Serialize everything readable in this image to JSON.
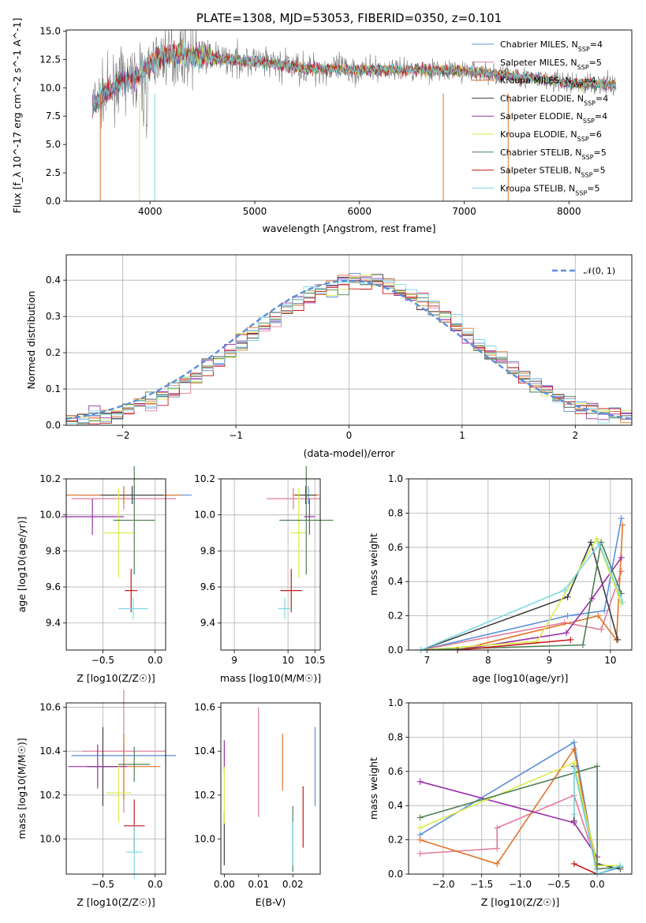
{
  "colors": {
    "Chabrier MILES": "#5b8fd9",
    "Salpeter MILES": "#e07b9b",
    "Kroupa MILES": "#e0742b",
    "Chabrier ELODIE": "#3f3f3f",
    "Salpeter ELODIE": "#9a2fa8",
    "Kroupa ELODIE": "#d9ec4a",
    "Chabrier STELIB": "#4f7f55",
    "Salpeter STELIB": "#c41a1a",
    "Kroupa STELIB": "#7ed9e3"
  },
  "chart_data": [
    {
      "type": "line",
      "title": "PLATE=1308, MJD=53053, FIBERID=0350, z=0.101",
      "xlabel": "wavelength [Angstrom, rest frame]",
      "ylabel": "Flux [f_λ 10^-17 erg cm^-2 s^-1 A^-1]",
      "xlim": [
        3200,
        8600
      ],
      "ylim": [
        0,
        15.1
      ],
      "xticks": [
        "4000",
        "5000",
        "6000",
        "7000",
        "8000"
      ],
      "yticks": [
        "0.0",
        "2.5",
        "5.0",
        "7.5",
        "10.0",
        "12.5",
        "15.0"
      ],
      "legend_position": "top-right",
      "legend": [
        {
          "name": "Chabrier MILES",
          "nssp": "4"
        },
        {
          "name": "Salpeter MILES",
          "nssp": "5"
        },
        {
          "name": "Kroupa MILES",
          "nssp": "4"
        },
        {
          "name": "Chabrier ELODIE",
          "nssp": "4"
        },
        {
          "name": "Salpeter ELODIE",
          "nssp": "4"
        },
        {
          "name": "Kroupa ELODIE",
          "nssp": "6"
        },
        {
          "name": "Chabrier STELIB",
          "nssp": "5"
        },
        {
          "name": "Salpeter STELIB",
          "nssp": "5"
        },
        {
          "name": "Kroupa STELIB",
          "nssp": "5"
        }
      ],
      "spectrum_profile": {
        "x": [
          3450,
          3700,
          3900,
          4100,
          4300,
          4600,
          5000,
          5500,
          6000,
          6500,
          7000,
          7500,
          8000,
          8450
        ],
        "y": [
          8.5,
          10.5,
          11.0,
          12.8,
          13.0,
          12.6,
          12.3,
          11.7,
          11.6,
          11.6,
          11.5,
          11.0,
          10.4,
          10.3
        ]
      },
      "grid": false
    },
    {
      "type": "histogram",
      "xlabel": "(data-model)/error",
      "ylabel": "Normed distribution",
      "xlim": [
        -2.5,
        2.5
      ],
      "ylim": [
        0,
        0.47
      ],
      "xticks": [
        "−2",
        "−1",
        "0",
        "1",
        "2"
      ],
      "yticks": [
        "0.0",
        "0.1",
        "0.2",
        "0.3",
        "0.4"
      ],
      "reference_curve": "N(0,1)",
      "legend_label": "𝒩(0, 1)",
      "legend_position": "top-right",
      "bin_width": 0.1,
      "grid": true
    },
    {
      "type": "scatter",
      "xlabel": "Z [log10(Z/Z☉)]",
      "ylabel": "age [log10(age/yr)]",
      "xlim": [
        -0.85,
        0.1
      ],
      "ylim": [
        9.25,
        10.2
      ],
      "xticks": [
        "−0.5",
        "0.0"
      ],
      "yticks": [
        "9.4",
        "9.6",
        "9.8",
        "10.0",
        "10.2"
      ],
      "points": [
        {
          "model": "Chabrier MILES",
          "x": -0.2,
          "xerr": 0.55,
          "y": 10.11,
          "yerr": 0.05
        },
        {
          "model": "Salpeter MILES",
          "x": -0.3,
          "xerr": 0.5,
          "y": 10.09,
          "yerr": 0.06
        },
        {
          "model": "Kroupa MILES",
          "x": -0.3,
          "xerr": 0.55,
          "y": 10.11,
          "yerr": 0.05
        },
        {
          "model": "Chabrier ELODIE",
          "x": -0.22,
          "xerr": 0.3,
          "y": 10.11,
          "yerr": 0.05
        },
        {
          "model": "Salpeter ELODIE",
          "x": -0.6,
          "xerr": 0.3,
          "y": 9.99,
          "yerr": 0.1
        },
        {
          "model": "Kroupa ELODIE",
          "x": -0.35,
          "xerr": 0.15,
          "y": 9.9,
          "yerr": 0.25
        },
        {
          "model": "Chabrier STELIB",
          "x": -0.2,
          "xerr": 0.2,
          "y": 9.97,
          "yerr": 0.3
        },
        {
          "model": "Salpeter STELIB",
          "x": -0.23,
          "xerr": 0.06,
          "y": 9.58,
          "yerr": 0.12
        },
        {
          "model": "Kroupa STELIB",
          "x": -0.21,
          "xerr": 0.14,
          "y": 9.48,
          "yerr": 0.06
        }
      ],
      "grid": true
    },
    {
      "type": "scatter",
      "xlabel": "mass [log10(M/M☉)]",
      "ylabel": "",
      "xlim": [
        8.75,
        10.6
      ],
      "ylim": [
        9.25,
        10.2
      ],
      "xticks": [
        "9",
        "10",
        "10.5"
      ],
      "yticks": [
        "9.4",
        "9.6",
        "9.8",
        "10.0",
        "10.2"
      ],
      "points": [
        {
          "model": "Chabrier MILES",
          "x": 10.38,
          "xerr": 0.12,
          "y": 10.11,
          "yerr": 0.05
        },
        {
          "model": "Salpeter MILES",
          "x": 10.1,
          "xerr": 0.5,
          "y": 10.09,
          "yerr": 0.06
        },
        {
          "model": "Kroupa MILES",
          "x": 10.33,
          "xerr": 0.25,
          "y": 10.11,
          "yerr": 0.05
        },
        {
          "model": "Chabrier ELODIE",
          "x": 10.33,
          "xerr": 0.2,
          "y": 10.11,
          "yerr": 0.05
        },
        {
          "model": "Salpeter ELODIE",
          "x": 10.4,
          "xerr": 0.1,
          "y": 9.99,
          "yerr": 0.1
        },
        {
          "model": "Kroupa ELODIE",
          "x": 10.2,
          "xerr": 0.15,
          "y": 9.9,
          "yerr": 0.25
        },
        {
          "model": "Chabrier STELIB",
          "x": 10.34,
          "xerr": 0.5,
          "y": 9.97,
          "yerr": 0.3
        },
        {
          "model": "Salpeter STELIB",
          "x": 10.06,
          "xerr": 0.2,
          "y": 9.58,
          "yerr": 0.12
        },
        {
          "model": "Kroupa STELIB",
          "x": 9.94,
          "xerr": 0.12,
          "y": 9.48,
          "yerr": 0.06
        }
      ],
      "grid": true
    },
    {
      "type": "line",
      "xlabel": "age [log10(age/yr)]",
      "ylabel": "mass weight",
      "xlim": [
        6.7,
        10.35
      ],
      "ylim": [
        0,
        1.0
      ],
      "xticks": [
        "7",
        "8",
        "9",
        "10"
      ],
      "yticks": [
        "0.0",
        "0.2",
        "0.4",
        "0.6",
        "0.8",
        "1.0"
      ],
      "series": [
        {
          "model": "Chabrier MILES",
          "x": [
            6.9,
            9.3,
            9.9,
            10.18
          ],
          "y": [
            0.0,
            0.2,
            0.23,
            0.77
          ]
        },
        {
          "model": "Salpeter MILES",
          "x": [
            6.9,
            9.25,
            9.85,
            10.18
          ],
          "y": [
            0.0,
            0.16,
            0.12,
            0.46
          ]
        },
        {
          "model": "Kroupa MILES",
          "x": [
            7.5,
            9.8,
            10.1,
            10.2
          ],
          "y": [
            0.0,
            0.2,
            0.06,
            0.73
          ]
        },
        {
          "model": "Chabrier ELODIE",
          "x": [
            6.9,
            9.3,
            9.68,
            10.12
          ],
          "y": [
            0.0,
            0.31,
            0.63,
            0.06
          ]
        },
        {
          "model": "Salpeter ELODIE",
          "x": [
            7.5,
            9.28,
            9.7,
            10.18
          ],
          "y": [
            0.0,
            0.1,
            0.3,
            0.54
          ]
        },
        {
          "model": "Kroupa ELODIE",
          "x": [
            6.9,
            8.8,
            9.78,
            10.18
          ],
          "y": [
            0.0,
            0.05,
            0.65,
            0.27
          ]
        },
        {
          "model": "Chabrier STELIB",
          "x": [
            6.9,
            9.55,
            9.85,
            10.18
          ],
          "y": [
            0.0,
            0.03,
            0.63,
            0.33
          ]
        },
        {
          "model": "Salpeter STELIB",
          "x": [
            7.5,
            9.35
          ],
          "y": [
            0.0,
            0.06
          ]
        },
        {
          "model": "Kroupa STELIB",
          "x": [
            6.9,
            9.25,
            9.82,
            10.2
          ],
          "y": [
            0.0,
            0.35,
            0.62,
            0.28
          ]
        }
      ],
      "grid": true
    },
    {
      "type": "scatter",
      "xlabel": "Z [log10(Z/Z☉)]",
      "ylabel": "mass [log10(M/M☉)]",
      "xlim": [
        -0.85,
        0.1
      ],
      "ylim": [
        9.84,
        10.62
      ],
      "xticks": [
        "−0.5",
        "0.0"
      ],
      "yticks": [
        "10.0",
        "10.2",
        "10.4",
        "10.6"
      ],
      "points": [
        {
          "model": "Chabrier MILES",
          "x": -0.3,
          "xerr": 0.5,
          "y": 10.38,
          "yerr": 0.05
        },
        {
          "model": "Salpeter MILES",
          "x": -0.3,
          "xerr": 0.4,
          "y": 10.4,
          "yerr": 0.28
        },
        {
          "model": "Kroupa MILES",
          "x": -0.3,
          "xerr": 0.35,
          "y": 10.33,
          "yerr": 0.15
        },
        {
          "model": "Chabrier ELODIE",
          "x": -0.5,
          "xerr": 0.15,
          "y": 10.33,
          "yerr": 0.18
        },
        {
          "model": "Salpeter ELODIE",
          "x": -0.55,
          "xerr": 0.28,
          "y": 10.33,
          "yerr": 0.1
        },
        {
          "model": "Kroupa ELODIE",
          "x": -0.35,
          "xerr": 0.12,
          "y": 10.21,
          "yerr": 0.13
        },
        {
          "model": "Chabrier STELIB",
          "x": -0.2,
          "xerr": 0.15,
          "y": 10.34,
          "yerr": 0.08
        },
        {
          "model": "Salpeter STELIB",
          "x": -0.2,
          "xerr": 0.1,
          "y": 10.06,
          "yerr": 0.12
        },
        {
          "model": "Kroupa STELIB",
          "x": -0.2,
          "xerr": 0.08,
          "y": 9.94,
          "yerr": 0.12
        }
      ],
      "grid": true
    },
    {
      "type": "scatter",
      "xlabel": "E(B-V)",
      "ylabel": "",
      "xlim": [
        -0.001,
        0.028
      ],
      "ylim": [
        9.84,
        10.62
      ],
      "xticks": [
        "0.00",
        "0.01",
        "0.02"
      ],
      "yticks": [
        "10.0",
        "10.2",
        "10.4",
        "10.6"
      ],
      "points": [
        {
          "model": "Chabrier MILES",
          "x": 0.0265,
          "y": 10.33,
          "yerr": 0.18
        },
        {
          "model": "Salpeter MILES",
          "x": 0.01,
          "y": 10.35,
          "yerr": 0.25
        },
        {
          "model": "Kroupa MILES",
          "x": 0.017,
          "y": 10.35,
          "yerr": 0.13
        },
        {
          "model": "Chabrier ELODIE",
          "x": 0.0,
          "y": 10.0,
          "yerr": 0.12
        },
        {
          "model": "Salpeter ELODIE",
          "x": 0.0,
          "y": 10.38,
          "yerr": 0.07
        },
        {
          "model": "Kroupa ELODIE",
          "x": 0.0,
          "y": 10.2,
          "yerr": 0.13
        },
        {
          "model": "Chabrier STELIB",
          "x": 0.02,
          "y": 10.0,
          "yerr": 0.15
        },
        {
          "model": "Salpeter STELIB",
          "x": 0.023,
          "y": 10.1,
          "yerr": 0.14
        },
        {
          "model": "Kroupa STELIB",
          "x": 0.02,
          "y": 9.98,
          "yerr": 0.1
        }
      ],
      "grid": false
    },
    {
      "type": "line",
      "xlabel": "Z [log10(Z/Z☉)]",
      "ylabel": "mass weight",
      "xlim": [
        -2.45,
        0.45
      ],
      "ylim": [
        0,
        1.0
      ],
      "xticks": [
        "−2.0",
        "−1.5",
        "−1.0",
        "−0.5",
        "0.0"
      ],
      "yticks": [
        "0.0",
        "0.2",
        "0.4",
        "0.6",
        "0.8",
        "1.0"
      ],
      "series": [
        {
          "model": "Chabrier MILES",
          "x": [
            -2.3,
            -0.3,
            0.0,
            0.3
          ],
          "y": [
            0.23,
            0.77,
            0.0,
            0.04
          ]
        },
        {
          "model": "Salpeter MILES",
          "x": [
            -2.3,
            -1.3,
            -1.3,
            -0.3,
            0.0
          ],
          "y": [
            0.12,
            0.15,
            0.27,
            0.46,
            0.05
          ]
        },
        {
          "model": "Kroupa MILES",
          "x": [
            -2.3,
            -1.3,
            -0.3,
            0.0
          ],
          "y": [
            0.2,
            0.06,
            0.73,
            0.0
          ]
        },
        {
          "model": "Chabrier ELODIE",
          "x": [
            -0.3,
            -0.3,
            0.0,
            0.3
          ],
          "y": [
            0.31,
            0.63,
            0.06,
            0.03
          ]
        },
        {
          "model": "Salpeter ELODIE",
          "x": [
            -2.3,
            -0.3,
            0.0
          ],
          "y": [
            0.54,
            0.3,
            0.1
          ]
        },
        {
          "model": "Kroupa ELODIE",
          "x": [
            -2.3,
            -0.3,
            0.0,
            0.3
          ],
          "y": [
            0.27,
            0.65,
            0.05,
            0.05
          ]
        },
        {
          "model": "Chabrier STELIB",
          "x": [
            -2.3,
            0.0,
            0.0,
            0.3
          ],
          "y": [
            0.33,
            0.63,
            0.03,
            0.04
          ]
        },
        {
          "model": "Salpeter STELIB",
          "x": [
            -0.3,
            0.0
          ],
          "y": [
            0.06,
            0.0
          ]
        },
        {
          "model": "Kroupa STELIB",
          "x": [
            -0.3,
            -0.3,
            0.0,
            0.3
          ],
          "y": [
            0.35,
            0.62,
            0.0,
            0.05
          ]
        }
      ],
      "grid": true
    }
  ]
}
